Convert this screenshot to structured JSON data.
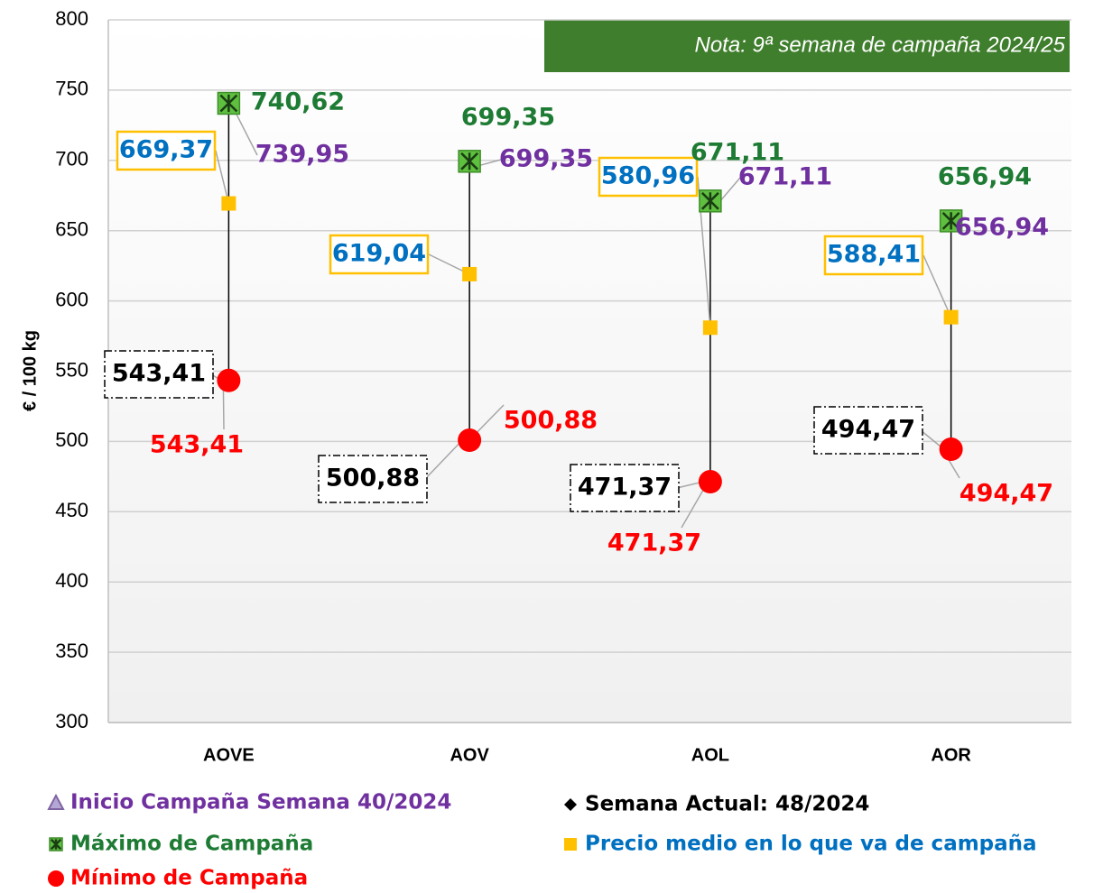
{
  "chart_data": {
    "type": "highlow",
    "note": "Nota: 9ª semana de campaña 2024/25",
    "y_label": "€ / 100 kg",
    "categories": [
      "AOVE",
      "AOV",
      "AOL",
      "AOR"
    ],
    "ylim": [
      300,
      800
    ],
    "yticks": [
      300,
      350,
      400,
      450,
      500,
      550,
      600,
      650,
      700,
      750,
      800
    ],
    "grid": true,
    "series": [
      {
        "name": "Inicio Campaña Semana 40/2024",
        "color": "#7030a0",
        "marker": "triangle",
        "values": [
          739.95,
          699.35,
          671.11,
          656.94
        ],
        "value_labels": [
          "739,95",
          "699,35",
          "671,11",
          "656,94"
        ]
      },
      {
        "name": "Máximo de Campaña",
        "color": "#1e7b34",
        "marker": "xsquare",
        "values": [
          740.62,
          699.35,
          671.11,
          656.94
        ],
        "value_labels": [
          "740,62",
          "699,35",
          "671,11",
          "656,94"
        ]
      },
      {
        "name": "Mínimo de Campaña",
        "color": "#ff0000",
        "marker": "circle",
        "values": [
          543.41,
          500.88,
          471.37,
          494.47
        ],
        "value_labels": [
          "543,41",
          "500,88",
          "471,37",
          "494,47"
        ]
      },
      {
        "name": "Semana Actual: 48/2024",
        "color": "#000000",
        "marker": "diamond",
        "values": [
          543.41,
          500.88,
          471.37,
          494.47
        ],
        "value_labels": [
          "543,41",
          "500,88",
          "471,37",
          "494,47"
        ]
      },
      {
        "name": "Precio medio en lo que va de campaña",
        "color": "#ffc000",
        "marker": "square",
        "values": [
          669.37,
          619.04,
          580.96,
          588.41
        ],
        "value_labels": [
          "669,37",
          "619,04",
          "580,96",
          "588,41"
        ]
      }
    ]
  }
}
